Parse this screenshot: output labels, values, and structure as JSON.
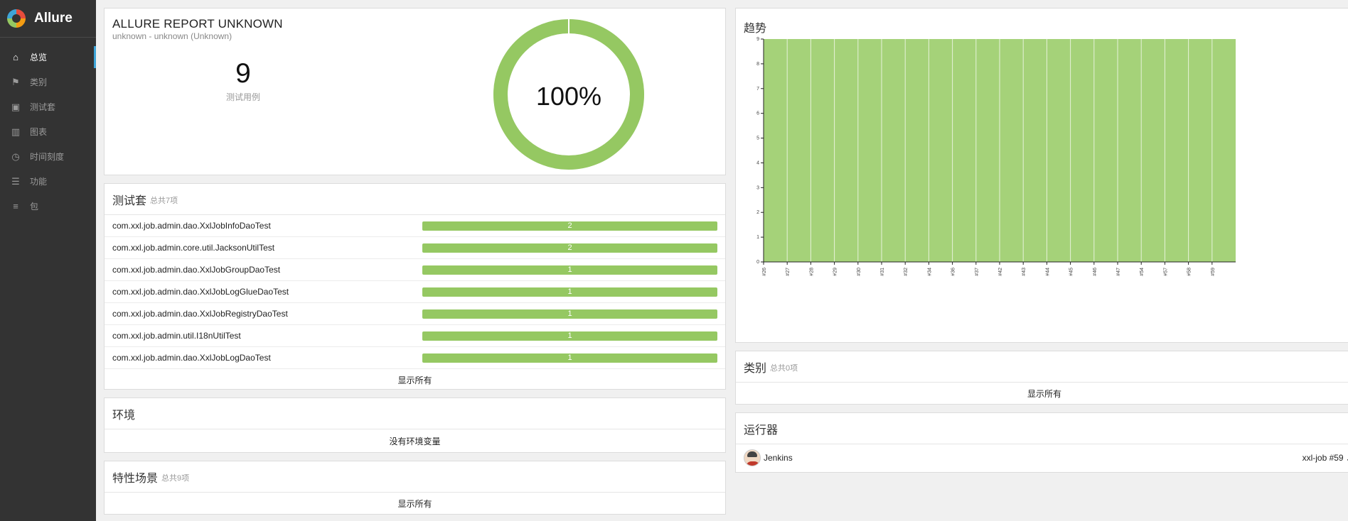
{
  "app": {
    "name": "Allure"
  },
  "nav": [
    {
      "label": "总览",
      "icon": "home-icon",
      "glyph": "⌂",
      "active": true
    },
    {
      "label": "类别",
      "icon": "flag-icon",
      "glyph": "⚑",
      "active": false
    },
    {
      "label": "测试套",
      "icon": "briefcase-icon",
      "glyph": "▣",
      "active": false
    },
    {
      "label": "图表",
      "icon": "bar-chart-icon",
      "glyph": "▥",
      "active": false
    },
    {
      "label": "时间刻度",
      "icon": "clock-icon",
      "glyph": "◷",
      "active": false
    },
    {
      "label": "功能",
      "icon": "list-icon",
      "glyph": "☰",
      "active": false
    },
    {
      "label": "包",
      "icon": "align-left-icon",
      "glyph": "≡",
      "active": false
    }
  ],
  "summary": {
    "title": "ALLURE REPORT UNKNOWN",
    "subtitle": "unknown - unknown (Unknown)",
    "count": "9",
    "count_label": "测试用例",
    "percent": "100%",
    "passed_fraction": 1.0,
    "color": "#95c862"
  },
  "suites": {
    "title": "测试套",
    "count": "总共7项",
    "items": [
      {
        "name": "com.xxl.job.admin.dao.XxlJobInfoDaoTest",
        "value": "2"
      },
      {
        "name": "com.xxl.job.admin.core.util.JacksonUtilTest",
        "value": "2"
      },
      {
        "name": "com.xxl.job.admin.dao.XxlJobGroupDaoTest",
        "value": "1"
      },
      {
        "name": "com.xxl.job.admin.dao.XxlJobLogGlueDaoTest",
        "value": "1"
      },
      {
        "name": "com.xxl.job.admin.dao.XxlJobRegistryDaoTest",
        "value": "1"
      },
      {
        "name": "com.xxl.job.admin.util.I18nUtilTest",
        "value": "1"
      },
      {
        "name": "com.xxl.job.admin.dao.XxlJobLogDaoTest",
        "value": "1"
      }
    ],
    "show_all": "显示所有"
  },
  "environment": {
    "title": "环境",
    "message": "没有环境变量"
  },
  "behaviors": {
    "title": "特性场景",
    "count": "总共9项",
    "show_all": "显示所有"
  },
  "trend": {
    "title": "趋势"
  },
  "categories": {
    "title": "类别",
    "count": "总共0项",
    "show_all": "显示所有"
  },
  "executors": {
    "title": "运行器",
    "name": "Jenkins",
    "build": "xxl-job #59",
    "link_icon": "external-link-icon"
  },
  "chart_data": {
    "type": "area",
    "x": [
      "#26",
      "#27",
      "#28",
      "#29",
      "#30",
      "#31",
      "#32",
      "#34",
      "#36",
      "#37",
      "#42",
      "#43",
      "#44",
      "#45",
      "#46",
      "#47",
      "#54",
      "#57",
      "#58",
      "#59"
    ],
    "series": [
      {
        "values": [
          9,
          9,
          9,
          9,
          9,
          9,
          9,
          9,
          9,
          9,
          9,
          9,
          9,
          9,
          9,
          9,
          9,
          9,
          9,
          9
        ],
        "color": "#a5d279"
      }
    ],
    "ylim": [
      0,
      9
    ],
    "yticks": [
      0,
      1,
      2,
      3,
      4,
      5,
      6,
      7,
      8,
      9
    ]
  }
}
